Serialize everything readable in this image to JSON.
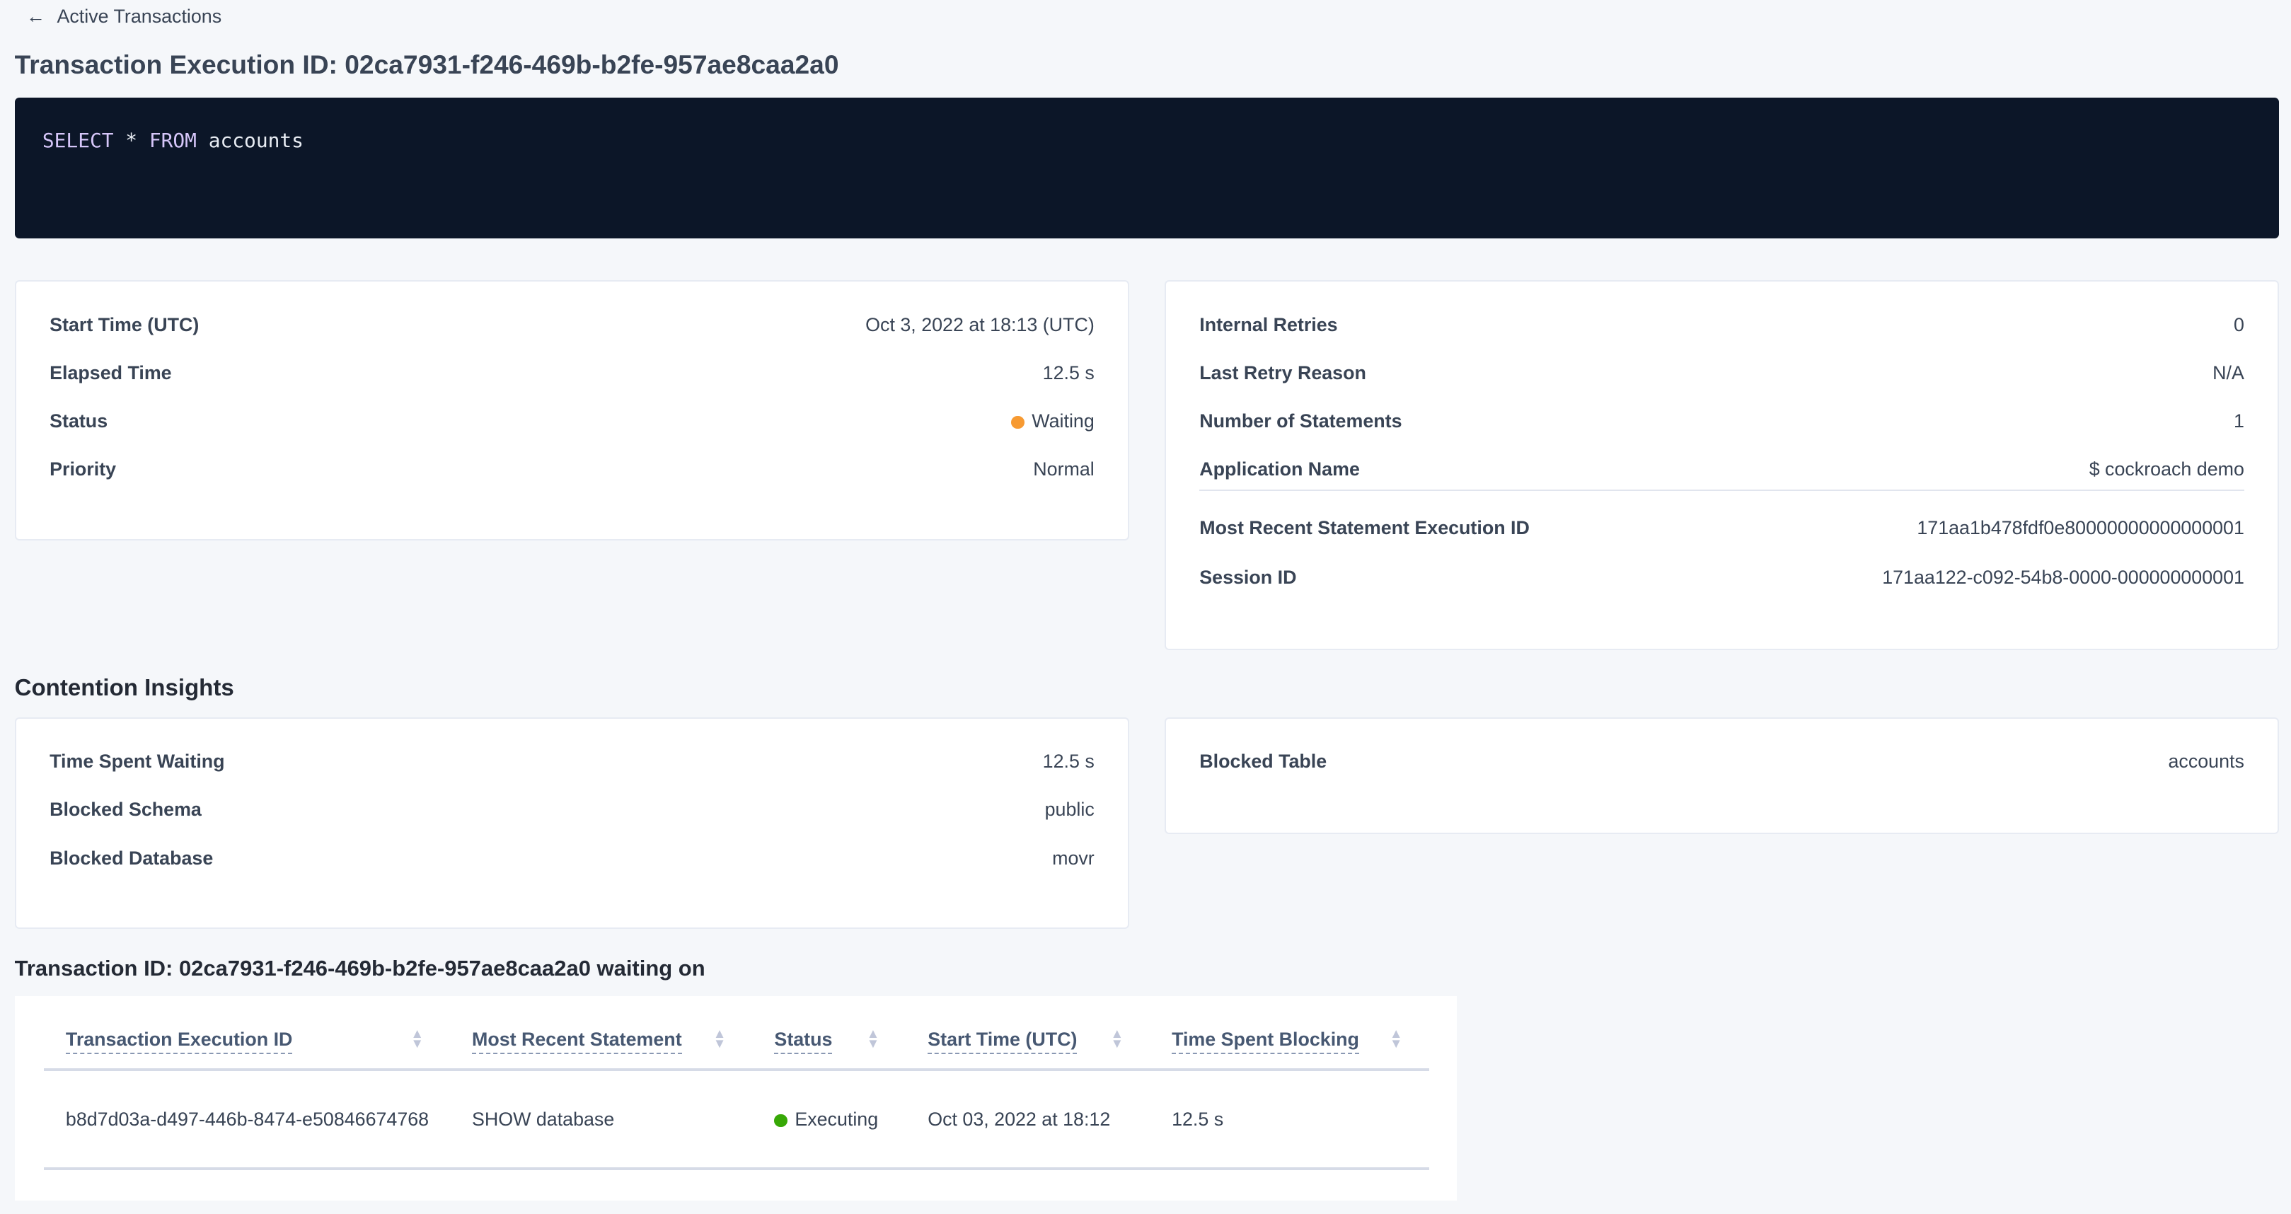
{
  "nav": {
    "back_label": "Active Transactions",
    "back_icon": "arrow-left-icon"
  },
  "page_title": "Transaction Execution ID: 02ca7931-f246-469b-b2fe-957ae8caa2a0",
  "sql": {
    "kw1": "SELECT",
    "star": "*",
    "kw2": "FROM",
    "table": "accounts"
  },
  "details_left": [
    {
      "label": "Start Time (UTC)",
      "value": "Oct 3, 2022 at 18:13 (UTC)"
    },
    {
      "label": "Elapsed Time",
      "value": "12.5 s"
    },
    {
      "label": "Status",
      "value": "Waiting",
      "color": "#f79a32"
    },
    {
      "label": "Priority",
      "value": "Normal"
    }
  ],
  "details_right": [
    {
      "label": "Internal Retries",
      "value": "0"
    },
    {
      "label": "Last Retry Reason",
      "value": "N/A"
    },
    {
      "label": "Number of Statements",
      "value": "1"
    },
    {
      "label": "Application Name",
      "value": "$ cockroach demo"
    },
    {
      "label": "Most Recent Statement Execution ID",
      "value": "171aa1b478fdf0e80000000000000001"
    },
    {
      "label": "Session ID",
      "value": "171aa122-c092-54b8-0000-000000000001"
    }
  ],
  "contention": {
    "title": "Contention Insights",
    "left": [
      {
        "label": "Time Spent Waiting",
        "value": "12.5 s"
      },
      {
        "label": "Blocked Schema",
        "value": "public"
      },
      {
        "label": "Blocked Database",
        "value": "movr"
      }
    ],
    "right": [
      {
        "label": "Blocked Table",
        "value": "accounts"
      }
    ]
  },
  "waiting": {
    "title": "Transaction ID: 02ca7931-f246-469b-b2fe-957ae8caa2a0 waiting on",
    "columns": [
      "Transaction Execution ID",
      "Most Recent Statement",
      "Status",
      "Start Time (UTC)",
      "Time Spent Blocking"
    ],
    "rows": [
      [
        "b8d7d03a-d497-446b-8474-e50846674768",
        "SHOW database",
        "Executing",
        "Oct 03, 2022 at 18:12",
        "12.5 s"
      ]
    ],
    "status_color": "#37a806"
  }
}
